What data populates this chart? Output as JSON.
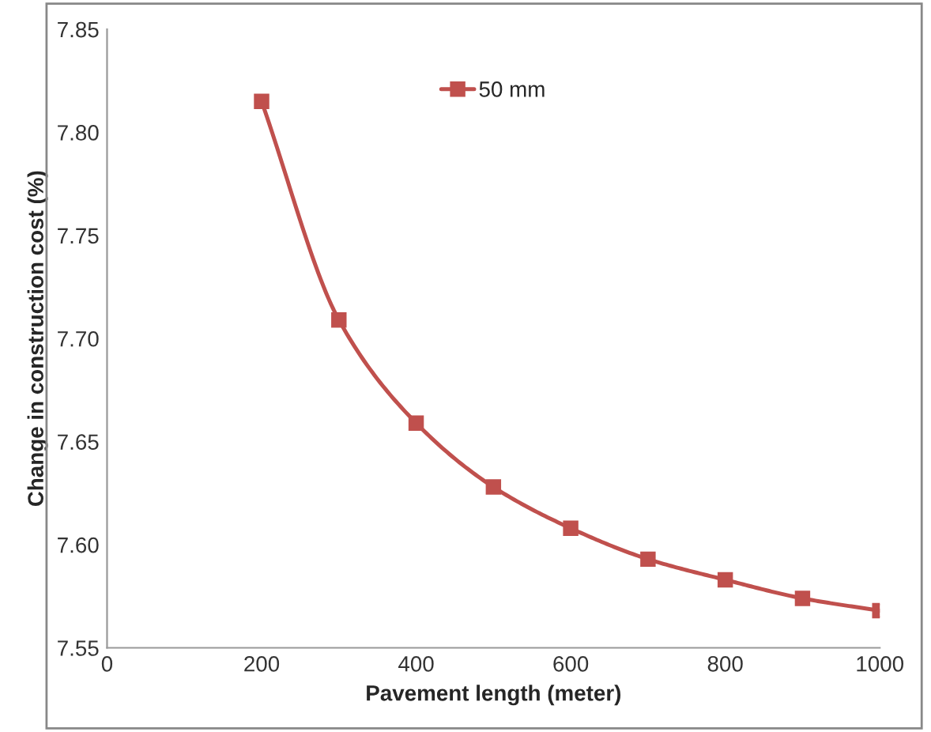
{
  "chart_data": {
    "type": "line",
    "xlabel": "Pavement length (meter)",
    "ylabel": "Change in construction cost (%)",
    "x": [
      200,
      300,
      400,
      500,
      600,
      700,
      800,
      900,
      1000
    ],
    "series": [
      {
        "name": "50 mm",
        "color": "#c0504d",
        "values": [
          7.815,
          7.709,
          7.659,
          7.628,
          7.608,
          7.593,
          7.583,
          7.574,
          7.568
        ]
      }
    ],
    "xlim": [
      0,
      1000
    ],
    "xticks": [
      0,
      200,
      400,
      600,
      800,
      1000
    ],
    "ylim": [
      7.55,
      7.85
    ],
    "yticks": [
      {
        "value": 7.55,
        "label": "7.55"
      },
      {
        "value": 7.6,
        "label": "7.60"
      },
      {
        "value": 7.65,
        "label": "7.65"
      },
      {
        "value": 7.7,
        "label": "7.70"
      },
      {
        "value": 7.75,
        "label": "7.75"
      },
      {
        "value": 7.8,
        "label": "7.80"
      },
      {
        "value": 7.85,
        "label": "7.85"
      }
    ],
    "legend": "top",
    "marker": "square",
    "line_style": "solid",
    "grid": false
  }
}
